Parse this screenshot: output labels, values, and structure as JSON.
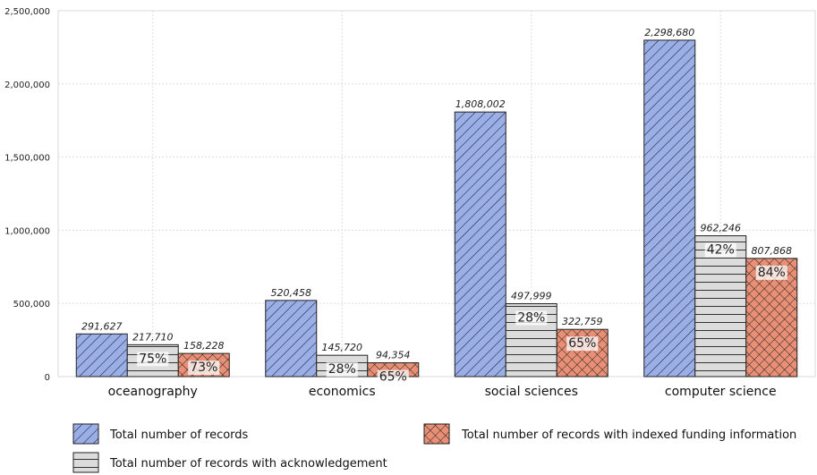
{
  "chart_data": {
    "type": "bar",
    "categories": [
      "oceanography",
      "economics",
      "social sciences",
      "computer science"
    ],
    "series": [
      {
        "name": "Total number of records",
        "values": [
          291627,
          520458,
          1808002,
          2298680
        ],
        "value_labels": [
          "291,627",
          "520,458",
          "1,808,002",
          "2,298,680"
        ],
        "color": "#9aaee8",
        "pattern": "diagonal"
      },
      {
        "name": "Total number of records with acknowledgement",
        "values": [
          217710,
          145720,
          497999,
          962246
        ],
        "value_labels": [
          "217,710",
          "145,720",
          "497,999",
          "962,246"
        ],
        "percent_labels": [
          "75%",
          "28%",
          "28%",
          "42%"
        ],
        "color": "#dcdcdc",
        "pattern": "horizontal"
      },
      {
        "name": "Total number of records with indexed funding information",
        "values": [
          158228,
          94354,
          322759,
          807868
        ],
        "value_labels": [
          "158,228",
          "94,354",
          "322,759",
          "807,868"
        ],
        "percent_labels": [
          "73%",
          "65%",
          "65%",
          "84%"
        ],
        "color": "#e88f76",
        "pattern": "crosshatch"
      }
    ],
    "yticks": [
      "0",
      "500,000",
      "1,000,000",
      "1,500,000",
      "2,000,000",
      "2,500,000"
    ],
    "ytick_values": [
      0,
      500000,
      1000000,
      1500000,
      2000000,
      2500000
    ],
    "ylim": [
      0,
      2500000
    ],
    "grid": true,
    "legend_position": "bottom"
  }
}
